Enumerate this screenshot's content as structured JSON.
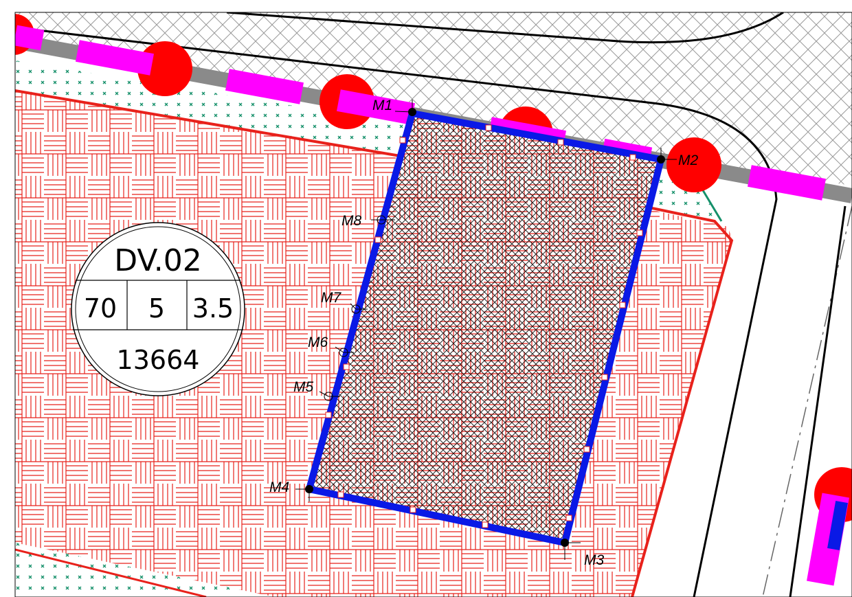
{
  "parcel": {
    "code": "DV.02",
    "density": "70",
    "floors": "5",
    "far": "3.5",
    "area": "13664"
  },
  "markers": [
    {
      "label": "M1"
    },
    {
      "label": "M2"
    },
    {
      "label": "M3"
    },
    {
      "label": "M4"
    },
    {
      "label": "M5"
    },
    {
      "label": "M6"
    },
    {
      "label": "M7"
    },
    {
      "label": "M8"
    }
  ],
  "colors": {
    "residential_hatch": "#e8211b",
    "boundary": "#0a19e6",
    "road_edge": "#e8211b",
    "green_buffer": "#15906a",
    "tree": "#ff0000",
    "light_pole": "#ff00ff",
    "pipe": "#8a8a8a"
  },
  "icons": {
    "tree": "tree-marker-icon",
    "pole": "light-pole-icon",
    "point": "survey-point-icon"
  }
}
